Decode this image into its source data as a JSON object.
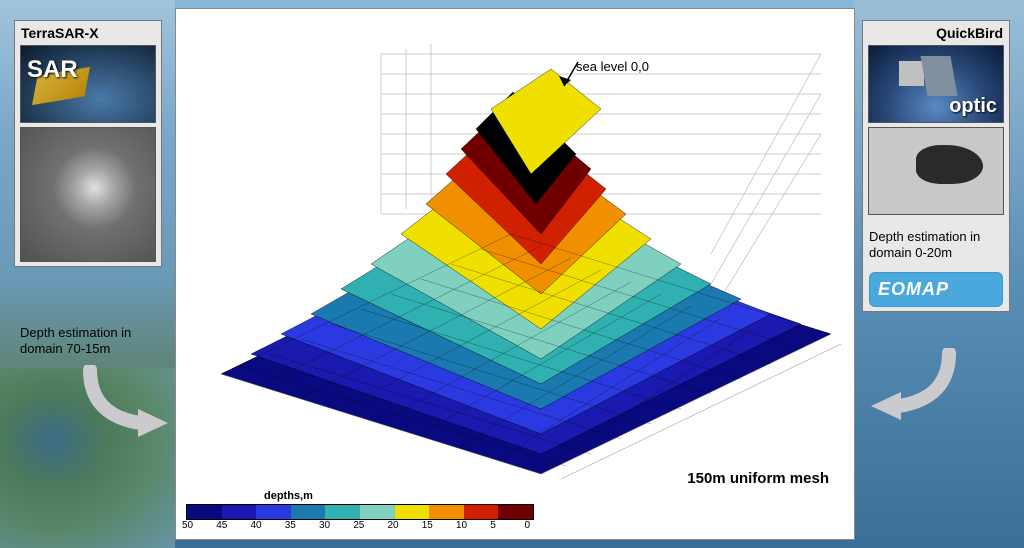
{
  "left_panel": {
    "title": "TerraSAR-X",
    "overlay_label": "SAR",
    "depth_text": "Depth estimation in domain 70-15m"
  },
  "right_panel": {
    "title": "QuickBird",
    "overlay_label": "optic",
    "depth_text": "Depth estimation in domain 0-20m",
    "logo_text": "EOMAP"
  },
  "center": {
    "sea_level_label": "sea level  0,0",
    "mesh_label": "150m uniform mesh",
    "colorbar": {
      "title": "depths,m",
      "segments": [
        {
          "label": "50",
          "color": "#0a0a80"
        },
        {
          "label": "45",
          "color": "#1a1ab0"
        },
        {
          "label": "40",
          "color": "#2a3ae0"
        },
        {
          "label": "35",
          "color": "#1a7ab0"
        },
        {
          "label": "30",
          "color": "#30b0b0"
        },
        {
          "label": "25",
          "color": "#80d0c0"
        },
        {
          "label": "20",
          "color": "#f0e000"
        },
        {
          "label": "15",
          "color": "#f09000"
        },
        {
          "label": "10",
          "color": "#d02000"
        },
        {
          "label": "5",
          "color": "#700000"
        },
        {
          "label": "0",
          "color": "#000000"
        }
      ]
    },
    "surface": {
      "type": "3d-mesh-surface",
      "grid_color": "#000000",
      "base_color": "#000000",
      "wall_grid_color": "#bbbbbb",
      "depth_colormap_ref": "center.colorbar.segments",
      "view": {
        "azimuth_deg": -45,
        "elevation_deg": 30
      },
      "mesh_resolution_m": 150,
      "depth_domain_m": [
        0,
        50
      ],
      "depth_field_approx": {
        "grid_size": [
          10,
          10
        ],
        "values": [
          [
            50,
            50,
            48,
            45,
            40,
            38,
            40,
            45,
            48,
            50
          ],
          [
            50,
            48,
            44,
            38,
            28,
            22,
            28,
            40,
            46,
            50
          ],
          [
            48,
            46,
            40,
            30,
            14,
            8,
            16,
            32,
            42,
            48
          ],
          [
            46,
            44,
            36,
            22,
            6,
            2,
            8,
            24,
            38,
            46
          ],
          [
            45,
            42,
            32,
            16,
            2,
            0,
            4,
            18,
            34,
            44
          ],
          [
            46,
            42,
            30,
            14,
            2,
            0,
            2,
            14,
            30,
            42
          ],
          [
            47,
            44,
            34,
            20,
            8,
            4,
            8,
            20,
            34,
            44
          ],
          [
            48,
            46,
            40,
            30,
            20,
            16,
            20,
            30,
            40,
            46
          ],
          [
            50,
            48,
            44,
            38,
            32,
            28,
            32,
            38,
            44,
            48
          ],
          [
            50,
            50,
            48,
            44,
            40,
            38,
            40,
            44,
            48,
            50
          ]
        ]
      },
      "structured_label_arrow": {
        "from": "top-right",
        "to": "peak",
        "label_ref": "center.sea_level_label"
      }
    }
  },
  "styling": {
    "font_family": "Arial, sans-serif",
    "panel_bg": "#e8e8e8",
    "panel_border": "#777777",
    "center_bg": "#ffffff",
    "arrow_color": "#c8c8cc",
    "title_fontsize_pt": 11,
    "overlay_fontsize_pt": 20,
    "depth_text_fontsize_pt": 10,
    "logo_bg": "#4aa8dd",
    "logo_text_color": "#ffffff"
  }
}
